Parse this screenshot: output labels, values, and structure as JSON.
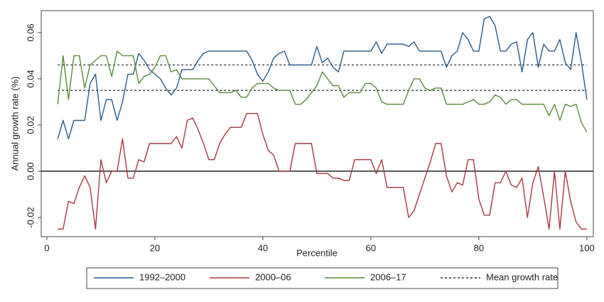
{
  "chart_data": {
    "type": "line",
    "ylabel": "Annual growth rate (%)",
    "xlabel": "Percentile",
    "x": [
      2,
      3,
      4,
      5,
      6,
      7,
      8,
      9,
      10,
      11,
      12,
      13,
      14,
      15,
      16,
      17,
      18,
      19,
      20,
      21,
      22,
      23,
      24,
      25,
      26,
      27,
      28,
      29,
      30,
      31,
      32,
      33,
      34,
      35,
      36,
      37,
      38,
      39,
      40,
      41,
      42,
      43,
      44,
      45,
      46,
      47,
      48,
      49,
      50,
      51,
      52,
      53,
      54,
      55,
      56,
      57,
      58,
      59,
      60,
      61,
      62,
      63,
      64,
      65,
      66,
      67,
      68,
      69,
      70,
      71,
      72,
      73,
      74,
      75,
      76,
      77,
      78,
      79,
      80,
      81,
      82,
      83,
      84,
      85,
      86,
      87,
      88,
      89,
      90,
      91,
      92,
      93,
      94,
      95,
      96,
      97,
      98,
      99,
      100
    ],
    "series": [
      {
        "name": "1992–2000",
        "color": "#2c5b88",
        "values": [
          0.014,
          0.022,
          0.014,
          0.022,
          0.022,
          0.022,
          0.038,
          0.042,
          0.022,
          0.031,
          0.031,
          0.022,
          0.03,
          0.042,
          0.042,
          0.051,
          0.048,
          0.044,
          0.042,
          0.04,
          0.036,
          0.033,
          0.036,
          0.044,
          0.044,
          0.044,
          0.048,
          0.051,
          0.052,
          0.052,
          0.052,
          0.052,
          0.052,
          0.052,
          0.052,
          0.052,
          0.048,
          0.042,
          0.039,
          0.043,
          0.049,
          0.051,
          0.052,
          0.046,
          0.046,
          0.046,
          0.046,
          0.046,
          0.054,
          0.047,
          0.049,
          0.045,
          0.043,
          0.052,
          0.052,
          0.052,
          0.052,
          0.052,
          0.052,
          0.056,
          0.051,
          0.055,
          0.055,
          0.055,
          0.055,
          0.054,
          0.056,
          0.052,
          0.052,
          0.052,
          0.052,
          0.052,
          0.045,
          0.05,
          0.052,
          0.06,
          0.057,
          0.052,
          0.052,
          0.066,
          0.067,
          0.063,
          0.052,
          0.052,
          0.055,
          0.056,
          0.043,
          0.057,
          0.06,
          0.045,
          0.055,
          0.052,
          0.052,
          0.057,
          0.047,
          0.044,
          0.06,
          0.047,
          0.031
        ]
      },
      {
        "name": "2000–06",
        "color": "#a43a40",
        "values": [
          -0.025,
          -0.025,
          -0.013,
          -0.014,
          -0.007,
          -0.002,
          -0.007,
          -0.025,
          0.005,
          -0.005,
          0,
          0,
          0.014,
          -0.003,
          -0.003,
          0.005,
          0.004,
          0.012,
          0.012,
          0.012,
          0.012,
          0.012,
          0.015,
          0.01,
          0.022,
          0.023,
          0.018,
          0.012,
          0.005,
          0.005,
          0.012,
          0.016,
          0.019,
          0.019,
          0.019,
          0.025,
          0.025,
          0.025,
          0.016,
          0.009,
          0.007,
          0,
          0,
          0,
          0.012,
          0.012,
          0.012,
          0.012,
          -0.001,
          -0.001,
          -0.001,
          -0.003,
          -0.003,
          -0.004,
          -0.004,
          0.005,
          0.005,
          0.005,
          0.005,
          -0.001,
          0.005,
          -0.007,
          -0.007,
          -0.007,
          -0.007,
          -0.02,
          -0.017,
          -0.01,
          -0.003,
          0.004,
          0.012,
          0.012,
          -0.002,
          -0.009,
          -0.005,
          -0.006,
          0.005,
          0.005,
          -0.012,
          -0.019,
          -0.019,
          -0.005,
          -0.005,
          0,
          -0.006,
          -0.007,
          -0.003,
          -0.02,
          -0.005,
          0.002,
          -0.011,
          -0.025,
          0,
          -0.025,
          0,
          -0.013,
          -0.022,
          -0.025,
          -0.025
        ]
      },
      {
        "name": "2006–17",
        "color": "#5b8a3c",
        "values": [
          0.029,
          0.05,
          0.031,
          0.05,
          0.05,
          0.036,
          0.046,
          0.048,
          0.05,
          0.05,
          0.041,
          0.052,
          0.05,
          0.05,
          0.05,
          0.038,
          0.041,
          0.042,
          0.045,
          0.05,
          0.05,
          0.043,
          0.044,
          0.04,
          0.04,
          0.04,
          0.04,
          0.04,
          0.04,
          0.037,
          0.034,
          0.034,
          0.034,
          0.035,
          0.032,
          0.032,
          0.036,
          0.038,
          0.038,
          0.038,
          0.036,
          0.035,
          0.035,
          0.035,
          0.029,
          0.029,
          0.031,
          0.034,
          0.037,
          0.043,
          0.04,
          0.037,
          0.037,
          0.032,
          0.034,
          0.034,
          0.034,
          0.038,
          0.038,
          0.036,
          0.03,
          0.029,
          0.029,
          0.029,
          0.029,
          0.035,
          0.04,
          0.04,
          0.036,
          0.035,
          0.036,
          0.036,
          0.029,
          0.029,
          0.029,
          0.029,
          0.03,
          0.031,
          0.029,
          0.029,
          0.03,
          0.033,
          0.032,
          0.029,
          0.031,
          0.031,
          0.029,
          0.029,
          0.029,
          0.029,
          0.029,
          0.024,
          0.029,
          0.022,
          0.029,
          0.028,
          0.029,
          0.021,
          0.017
        ]
      }
    ],
    "mean_lines": {
      "name": "Mean growth rate",
      "color": "#333333",
      "values": [
        0.046,
        0.035
      ]
    },
    "reference_line": 0,
    "xlim": [
      -1.05,
      101.2
    ],
    "xticks": [
      0,
      20,
      40,
      60,
      80,
      100
    ],
    "ylim": [
      -0.0283,
      0.0695
    ],
    "yticks": [
      0.06,
      0.04,
      0.02,
      {
        "value": 0,
        "label": "0.00"
      },
      -0.02
    ],
    "legend": "bottom"
  }
}
